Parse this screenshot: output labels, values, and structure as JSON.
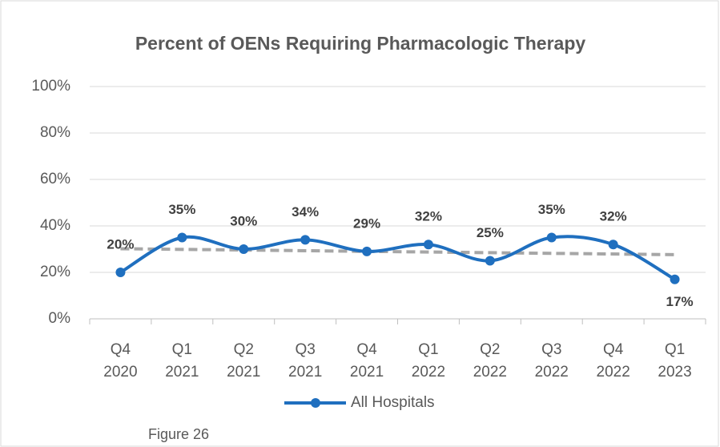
{
  "chart_data": {
    "type": "line",
    "title": "Percent of OENs Requiring Pharmacologic Therapy",
    "categories": [
      "Q4 2020",
      "Q1 2021",
      "Q2 2021",
      "Q3 2021",
      "Q4 2021",
      "Q1 2022",
      "Q2 2022",
      "Q3 2022",
      "Q4 2022",
      "Q1 2023"
    ],
    "series": [
      {
        "name": "All Hospitals",
        "color": "#1f6fbf",
        "values": [
          20,
          35,
          30,
          34,
          29,
          32,
          25,
          35,
          32,
          17
        ],
        "value_labels": [
          "20%",
          "35%",
          "30%",
          "34%",
          "29%",
          "32%",
          "25%",
          "35%",
          "32%",
          "17%"
        ]
      }
    ],
    "ylim": [
      0,
      100
    ],
    "yticks": [
      {
        "value": 0,
        "label": "0%"
      },
      {
        "value": 20,
        "label": "20%"
      },
      {
        "value": 40,
        "label": "40%"
      },
      {
        "value": 60,
        "label": "60%"
      },
      {
        "value": 80,
        "label": "80%"
      },
      {
        "value": 100,
        "label": "100%"
      }
    ],
    "grid": true,
    "smooth": true,
    "trendline": "linear",
    "trendline_color": "#a6a6a6",
    "legend": "bottom",
    "caption": "Figure 26"
  }
}
